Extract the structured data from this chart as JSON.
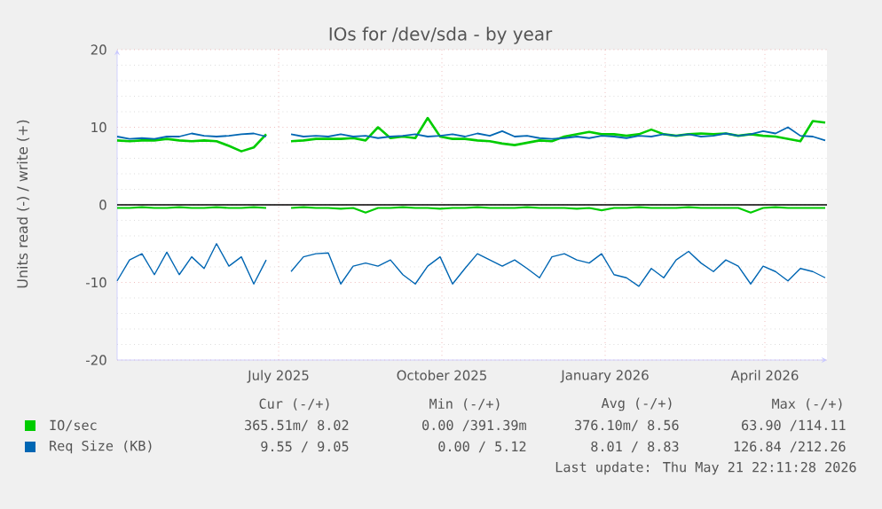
{
  "chart_data": {
    "type": "line",
    "title": "IOs for /dev/sda - by year",
    "ylabel": "Units read (-) / write (+)",
    "x": [
      "2025-04-16",
      "2025-04-23",
      "2025-04-30",
      "2025-05-07",
      "2025-05-14",
      "2025-05-21",
      "2025-05-28",
      "2025-06-04",
      "2025-06-11",
      "2025-06-18",
      "2025-06-25",
      "2025-07-02",
      "2025-07-09",
      "2025-07-16",
      "2025-07-23",
      "2025-07-30",
      "2025-08-06",
      "2025-08-13",
      "2025-08-20",
      "2025-08-27",
      "2025-09-03",
      "2025-09-10",
      "2025-09-17",
      "2025-09-24",
      "2025-10-01",
      "2025-10-08",
      "2025-10-15",
      "2025-10-22",
      "2025-10-29",
      "2025-11-05",
      "2025-11-12",
      "2025-11-19",
      "2025-11-26",
      "2025-12-03",
      "2025-12-10",
      "2025-12-17",
      "2025-12-24",
      "2025-12-31",
      "2026-01-07",
      "2026-01-14",
      "2026-01-21",
      "2026-01-28",
      "2026-02-04",
      "2026-02-11",
      "2026-02-18",
      "2026-02-25",
      "2026-03-04",
      "2026-03-11",
      "2026-03-18",
      "2026-03-25",
      "2026-04-01",
      "2026-04-08",
      "2026-04-15",
      "2026-04-22",
      "2026-04-29",
      "2026-05-06",
      "2026-05-13",
      "2026-05-20"
    ],
    "series": [
      {
        "name": "IO/sec",
        "color": "#00cc00",
        "values": [
          8.3,
          8.2,
          8.3,
          8.3,
          8.5,
          8.3,
          8.2,
          8.3,
          8.2,
          7.6,
          6.9,
          7.4,
          9.1,
          null,
          8.2,
          8.3,
          8.5,
          8.5,
          8.5,
          8.6,
          8.3,
          10.0,
          8.6,
          8.8,
          8.6,
          11.2,
          8.8,
          8.5,
          8.5,
          8.3,
          8.2,
          7.9,
          7.7,
          8.0,
          8.3,
          8.2,
          8.8,
          9.1,
          9.4,
          9.1,
          9.1,
          8.9,
          9.1,
          9.7,
          9.1,
          8.9,
          9.1,
          9.2,
          9.1,
          9.2,
          8.9,
          9.1,
          8.9,
          8.8,
          8.5,
          8.2,
          10.8,
          10.6
        ]
      },
      {
        "color": "#00cc00",
        "values": [
          -0.4,
          -0.4,
          -0.3,
          -0.4,
          -0.4,
          -0.3,
          -0.4,
          -0.4,
          -0.3,
          -0.4,
          -0.4,
          -0.3,
          -0.4,
          null,
          -0.4,
          -0.3,
          -0.4,
          -0.4,
          -0.5,
          -0.4,
          -1.0,
          -0.4,
          -0.4,
          -0.3,
          -0.4,
          -0.4,
          -0.5,
          -0.4,
          -0.4,
          -0.3,
          -0.4,
          -0.4,
          -0.4,
          -0.3,
          -0.4,
          -0.4,
          -0.4,
          -0.5,
          -0.4,
          -0.7,
          -0.4,
          -0.4,
          -0.3,
          -0.4,
          -0.4,
          -0.4,
          -0.3,
          -0.4,
          -0.4,
          -0.4,
          -0.4,
          -1.0,
          -0.4,
          -0.3,
          -0.4,
          -0.4,
          -0.4,
          -0.4
        ]
      },
      {
        "name": "Req Size (KB)",
        "color": "#0066b3",
        "values": [
          8.8,
          8.5,
          8.6,
          8.5,
          8.8,
          8.8,
          9.2,
          8.9,
          8.8,
          8.9,
          9.1,
          9.2,
          8.8,
          null,
          9.1,
          8.8,
          8.9,
          8.8,
          9.1,
          8.8,
          8.9,
          8.6,
          8.8,
          8.9,
          9.1,
          8.8,
          8.9,
          9.1,
          8.8,
          9.2,
          8.9,
          9.5,
          8.8,
          8.9,
          8.6,
          8.5,
          8.6,
          8.8,
          8.6,
          8.9,
          8.8,
          8.6,
          8.9,
          8.8,
          9.1,
          8.9,
          9.1,
          8.8,
          8.9,
          9.2,
          8.9,
          9.1,
          9.5,
          9.2,
          10.0,
          8.9,
          8.8,
          8.3
        ]
      },
      {
        "color": "#0066b3",
        "values": [
          -9.8,
          -7.1,
          -6.3,
          -9.0,
          -6.1,
          -9.0,
          -6.7,
          -8.2,
          -5.0,
          -7.9,
          -6.7,
          -10.2,
          -7.1,
          null,
          -8.6,
          -6.7,
          -6.3,
          -6.2,
          -10.2,
          -7.9,
          -7.5,
          -7.9,
          -7.1,
          -9.0,
          -10.2,
          -7.9,
          -6.7,
          -10.2,
          -8.2,
          -6.3,
          -7.1,
          -7.9,
          -7.1,
          -8.2,
          -9.4,
          -6.7,
          -6.3,
          -7.1,
          -7.5,
          -6.3,
          -9.0,
          -9.4,
          -10.5,
          -8.2,
          -9.4,
          -7.1,
          -6.0,
          -7.5,
          -8.6,
          -7.1,
          -7.9,
          -10.2,
          -7.9,
          -8.6,
          -9.8,
          -8.2,
          -8.6,
          -9.4
        ]
      }
    ],
    "xlim": [
      "2025-04-16",
      "2026-05-21"
    ],
    "xticks": [
      {
        "value": "2025-07-16",
        "label": "July 2025"
      },
      {
        "value": "2025-10-16",
        "label": "October 2025"
      },
      {
        "value": "2026-01-16",
        "label": "January 2026"
      },
      {
        "value": "2026-04-16",
        "label": "April 2026"
      }
    ],
    "ylim": [
      -20,
      20
    ],
    "yticks": [
      -20,
      -10,
      0,
      10,
      20
    ],
    "ref_lines": [
      {
        "axis": "y",
        "value": 0,
        "color": "#000000"
      }
    ],
    "grid": true,
    "legend": "bottom",
    "marker": "none",
    "line_style": "solid",
    "annotations": [
      "Cur (-/+)",
      "Min (-/+)",
      "Avg (-/+)",
      "Max (-/+)",
      "365.51m/ 8.02",
      "0.00 /391.39m",
      "376.10m/ 8.56",
      "63.90 /114.11",
      "9.55 / 9.05",
      "0.00 / 5.12",
      "8.01 / 8.83",
      "126.84 /212.26",
      "Last update: Thu May 21 22:11:28 2026"
    ]
  }
}
